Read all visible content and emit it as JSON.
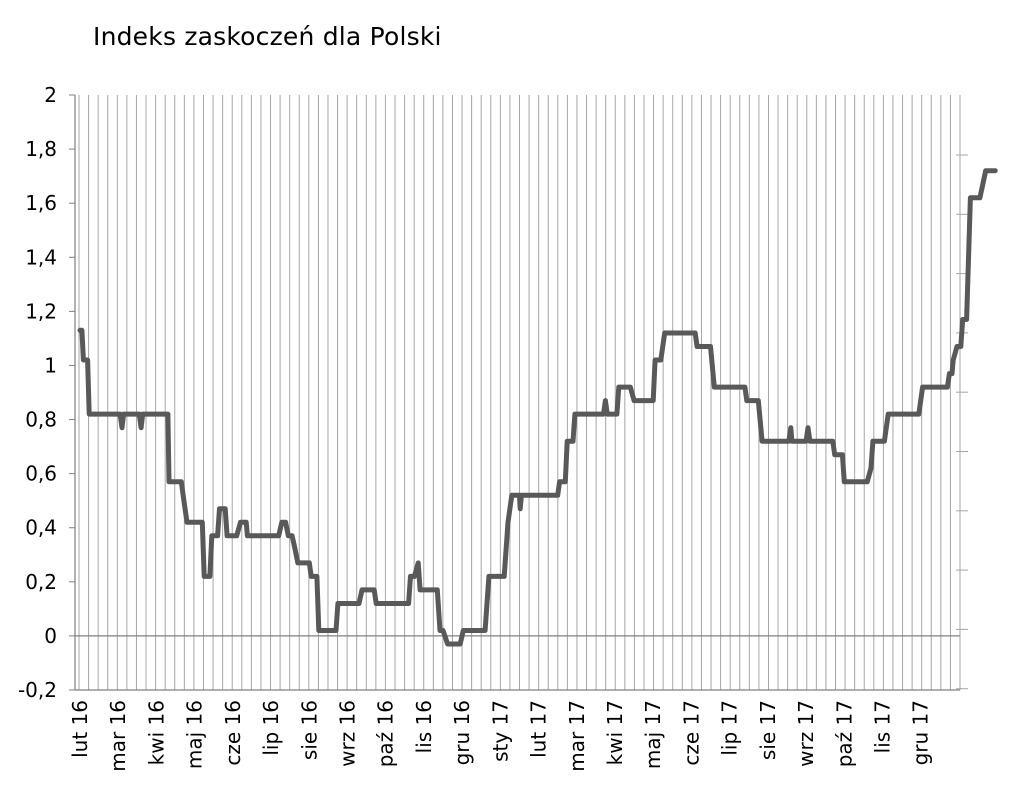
{
  "chart_data": {
    "type": "line",
    "title": "Indeks zaskoczeń dla Polski",
    "xlabel": "",
    "ylabel": "",
    "ylim": [
      -0.2,
      2
    ],
    "yticks": [
      "-0,2",
      "0",
      "0,2",
      "0,4",
      "0,6",
      "0,8",
      "1",
      "1,2",
      "1,4",
      "1,6",
      "1,8",
      "2"
    ],
    "categories": [
      "lut 16",
      "mar 16",
      "kwi 16",
      "maj 16",
      "cze 16",
      "lip 16",
      "sie 16",
      "wrz 16",
      "paź 16",
      "lis 16",
      "gru 16",
      "sty 17",
      "lut 17",
      "mar 17",
      "kwi 17",
      "maj 17",
      "cze 17",
      "lip 17",
      "sie 17",
      "wrz 17",
      "paź 17",
      "lis 17",
      "gru 17"
    ],
    "grid": "vertical",
    "legend": "none",
    "line_color": "#595959",
    "series": [
      {
        "values": [
          [
            0.0,
            1.13
          ],
          [
            0.05,
            1.13
          ],
          [
            0.09,
            1.02
          ],
          [
            0.2,
            1.02
          ],
          [
            0.24,
            0.82
          ],
          [
            1.05,
            0.82
          ],
          [
            1.1,
            0.77
          ],
          [
            1.14,
            0.82
          ],
          [
            1.55,
            0.82
          ],
          [
            1.6,
            0.77
          ],
          [
            1.64,
            0.82
          ],
          [
            2.3,
            0.82
          ],
          [
            2.33,
            0.57
          ],
          [
            2.65,
            0.57
          ],
          [
            2.72,
            0.5
          ],
          [
            2.8,
            0.42
          ],
          [
            3.2,
            0.42
          ],
          [
            3.25,
            0.22
          ],
          [
            3.4,
            0.22
          ],
          [
            3.45,
            0.37
          ],
          [
            3.6,
            0.37
          ],
          [
            3.65,
            0.47
          ],
          [
            3.8,
            0.47
          ],
          [
            3.85,
            0.37
          ],
          [
            4.1,
            0.37
          ],
          [
            4.2,
            0.42
          ],
          [
            4.35,
            0.42
          ],
          [
            4.38,
            0.37
          ],
          [
            5.2,
            0.37
          ],
          [
            5.28,
            0.42
          ],
          [
            5.38,
            0.42
          ],
          [
            5.45,
            0.37
          ],
          [
            5.55,
            0.37
          ],
          [
            5.63,
            0.32
          ],
          [
            5.7,
            0.27
          ],
          [
            6.0,
            0.27
          ],
          [
            6.05,
            0.22
          ],
          [
            6.2,
            0.22
          ],
          [
            6.25,
            0.02
          ],
          [
            6.7,
            0.02
          ],
          [
            6.75,
            0.12
          ],
          [
            7.3,
            0.12
          ],
          [
            7.38,
            0.17
          ],
          [
            7.7,
            0.17
          ],
          [
            7.75,
            0.12
          ],
          [
            8.6,
            0.12
          ],
          [
            8.65,
            0.22
          ],
          [
            8.75,
            0.22
          ],
          [
            8.85,
            0.27
          ],
          [
            8.9,
            0.17
          ],
          [
            9.35,
            0.17
          ],
          [
            9.42,
            0.02
          ],
          [
            9.5,
            0.02
          ],
          [
            9.62,
            -0.03
          ],
          [
            9.95,
            -0.03
          ],
          [
            10.03,
            0.02
          ],
          [
            10.6,
            0.02
          ],
          [
            10.7,
            0.22
          ],
          [
            11.1,
            0.22
          ],
          [
            11.2,
            0.42
          ],
          [
            11.3,
            0.52
          ],
          [
            11.5,
            0.52
          ],
          [
            11.52,
            0.47
          ],
          [
            11.55,
            0.52
          ],
          [
            12.5,
            0.52
          ],
          [
            12.55,
            0.57
          ],
          [
            12.7,
            0.57
          ],
          [
            12.75,
            0.72
          ],
          [
            12.9,
            0.72
          ],
          [
            12.95,
            0.82
          ],
          [
            13.7,
            0.82
          ],
          [
            13.75,
            0.87
          ],
          [
            13.8,
            0.82
          ],
          [
            14.05,
            0.82
          ],
          [
            14.1,
            0.92
          ],
          [
            14.4,
            0.92
          ],
          [
            14.5,
            0.87
          ],
          [
            15.0,
            0.87
          ],
          [
            15.05,
            1.02
          ],
          [
            15.2,
            1.02
          ],
          [
            15.3,
            1.12
          ],
          [
            16.1,
            1.12
          ],
          [
            16.15,
            1.07
          ],
          [
            16.5,
            1.07
          ],
          [
            16.6,
            0.92
          ],
          [
            17.4,
            0.92
          ],
          [
            17.45,
            0.87
          ],
          [
            17.75,
            0.87
          ],
          [
            17.85,
            0.72
          ],
          [
            18.55,
            0.72
          ],
          [
            18.6,
            0.77
          ],
          [
            18.63,
            0.72
          ],
          [
            19.0,
            0.72
          ],
          [
            19.05,
            0.77
          ],
          [
            19.1,
            0.72
          ],
          [
            19.7,
            0.72
          ],
          [
            19.75,
            0.67
          ],
          [
            19.95,
            0.67
          ],
          [
            20.0,
            0.57
          ],
          [
            20.6,
            0.57
          ],
          [
            20.7,
            0.62
          ],
          [
            20.75,
            0.72
          ],
          [
            21.05,
            0.72
          ],
          [
            21.15,
            0.82
          ],
          [
            21.95,
            0.82
          ],
          [
            22.05,
            0.92
          ],
          [
            22.7,
            0.92
          ],
          [
            22.75,
            0.97
          ],
          [
            22.82,
            0.97
          ],
          [
            22.85,
            1.02
          ],
          [
            22.95,
            1.07
          ],
          [
            23.05,
            1.07
          ],
          [
            23.1,
            1.17
          ],
          [
            23.2,
            1.17
          ],
          [
            23.3,
            1.62
          ],
          [
            23.55,
            1.62
          ],
          [
            23.7,
            1.72
          ],
          [
            23.95,
            1.72
          ]
        ]
      }
    ]
  }
}
